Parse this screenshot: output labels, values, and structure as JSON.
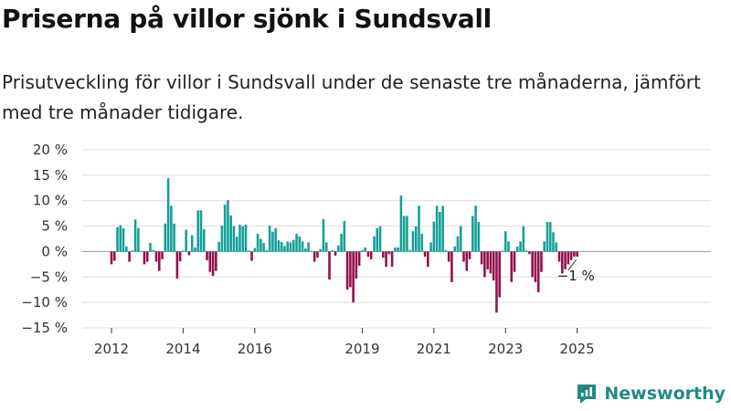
{
  "title": "Priserna på villor sjönk i Sundsvall",
  "subtitle": "Prisutveckling för villor i Sundsvall under de senaste tre månaderna, jämfört med tre månader tidigare.",
  "brand": {
    "name": "Newsworthy",
    "icon": "newsworthy-logo-icon",
    "color": "#1f8c82"
  },
  "colors": {
    "positive": "#13a098",
    "negative": "#930f4b",
    "grid": "#dddddd",
    "axis": "#333333"
  },
  "chart_data": {
    "type": "bar",
    "title": "",
    "xlabel": "",
    "ylabel": "",
    "unit": "%",
    "ylim": [
      -15,
      20
    ],
    "yticks": [
      20,
      15,
      10,
      5,
      0,
      -5,
      -10,
      -15
    ],
    "ytick_labels": [
      "20 %",
      "15 %",
      "10 %",
      "5 %",
      "0 %",
      "−5 %",
      "−10 %",
      "−15 %"
    ],
    "xticks": [
      {
        "label": "2012",
        "date": "2012-01"
      },
      {
        "label": "2014",
        "date": "2014-01"
      },
      {
        "label": "2016",
        "date": "2016-01"
      },
      {
        "label": "2019",
        "date": "2019-01"
      },
      {
        "label": "2021",
        "date": "2021-01"
      },
      {
        "label": "2023",
        "date": "2023-01"
      },
      {
        "label": "2025",
        "date": "2025-01"
      }
    ],
    "grid": true,
    "annotation": {
      "text": "−1 %",
      "date": "2025-01"
    },
    "series": [
      {
        "values": [
          {
            "date": "2012-01",
            "value": -2.5
          },
          {
            "date": "2012-02",
            "value": -1.8
          },
          {
            "date": "2012-03",
            "value": 4.8
          },
          {
            "date": "2012-04",
            "value": 5.2
          },
          {
            "date": "2012-05",
            "value": 4.6
          },
          {
            "date": "2012-06",
            "value": 1.0
          },
          {
            "date": "2012-07",
            "value": -2.0
          },
          {
            "date": "2012-08",
            "value": 0.2
          },
          {
            "date": "2012-09",
            "value": 6.3
          },
          {
            "date": "2012-10",
            "value": 4.6
          },
          {
            "date": "2012-11",
            "value": 0.1
          },
          {
            "date": "2012-12",
            "value": -2.5
          },
          {
            "date": "2013-01",
            "value": -2.0
          },
          {
            "date": "2013-02",
            "value": 1.7
          },
          {
            "date": "2013-03",
            "value": 0.3
          },
          {
            "date": "2013-04",
            "value": -2.0
          },
          {
            "date": "2013-05",
            "value": -3.8
          },
          {
            "date": "2013-06",
            "value": -1.5
          },
          {
            "date": "2013-07",
            "value": 5.5
          },
          {
            "date": "2013-08",
            "value": 14.4
          },
          {
            "date": "2013-09",
            "value": 9.0
          },
          {
            "date": "2013-10",
            "value": 5.5
          },
          {
            "date": "2013-11",
            "value": -5.3
          },
          {
            "date": "2013-12",
            "value": -1.9
          },
          {
            "date": "2014-01",
            "value": 0.2
          },
          {
            "date": "2014-02",
            "value": 4.3
          },
          {
            "date": "2014-03",
            "value": -0.7
          },
          {
            "date": "2014-04",
            "value": 3.2
          },
          {
            "date": "2014-05",
            "value": 0.8
          },
          {
            "date": "2014-06",
            "value": 8.1
          },
          {
            "date": "2014-07",
            "value": 8.1
          },
          {
            "date": "2014-08",
            "value": 4.4
          },
          {
            "date": "2014-09",
            "value": -1.7
          },
          {
            "date": "2014-10",
            "value": -4.0
          },
          {
            "date": "2014-11",
            "value": -4.8
          },
          {
            "date": "2014-12",
            "value": -3.8
          },
          {
            "date": "2015-01",
            "value": 1.9
          },
          {
            "date": "2015-02",
            "value": 5.1
          },
          {
            "date": "2015-03",
            "value": 9.2
          },
          {
            "date": "2015-04",
            "value": 10.1
          },
          {
            "date": "2015-05",
            "value": 7.1
          },
          {
            "date": "2015-06",
            "value": 5.0
          },
          {
            "date": "2015-07",
            "value": 2.9
          },
          {
            "date": "2015-08",
            "value": 5.3
          },
          {
            "date": "2015-09",
            "value": 5.0
          },
          {
            "date": "2015-10",
            "value": 5.3
          },
          {
            "date": "2015-11",
            "value": 0.2
          },
          {
            "date": "2015-12",
            "value": -1.8
          },
          {
            "date": "2016-01",
            "value": 0.7
          },
          {
            "date": "2016-02",
            "value": 3.5
          },
          {
            "date": "2016-03",
            "value": 2.5
          },
          {
            "date": "2016-04",
            "value": 1.7
          },
          {
            "date": "2016-05",
            "value": 0.3
          },
          {
            "date": "2016-06",
            "value": 5.1
          },
          {
            "date": "2016-07",
            "value": 3.9
          },
          {
            "date": "2016-08",
            "value": 4.6
          },
          {
            "date": "2016-09",
            "value": 2.2
          },
          {
            "date": "2016-10",
            "value": 1.9
          },
          {
            "date": "2016-11",
            "value": 1.1
          },
          {
            "date": "2016-12",
            "value": 2.0
          },
          {
            "date": "2017-01",
            "value": 1.8
          },
          {
            "date": "2017-02",
            "value": 2.3
          },
          {
            "date": "2017-03",
            "value": 3.5
          },
          {
            "date": "2017-04",
            "value": 3.0
          },
          {
            "date": "2017-05",
            "value": 2.0
          },
          {
            "date": "2017-06",
            "value": 0.6
          },
          {
            "date": "2017-07",
            "value": 1.8
          },
          {
            "date": "2017-08",
            "value": 0.0
          },
          {
            "date": "2017-09",
            "value": -2.0
          },
          {
            "date": "2017-10",
            "value": -1.2
          },
          {
            "date": "2017-11",
            "value": 0.5
          },
          {
            "date": "2017-12",
            "value": 6.4
          },
          {
            "date": "2018-01",
            "value": 1.8
          },
          {
            "date": "2018-02",
            "value": -5.5
          },
          {
            "date": "2018-03",
            "value": 0.2
          },
          {
            "date": "2018-04",
            "value": -0.8
          },
          {
            "date": "2018-05",
            "value": 1.2
          },
          {
            "date": "2018-06",
            "value": 3.5
          },
          {
            "date": "2018-07",
            "value": 6.0
          },
          {
            "date": "2018-08",
            "value": -7.5
          },
          {
            "date": "2018-09",
            "value": -7.0
          },
          {
            "date": "2018-10",
            "value": -10.0
          },
          {
            "date": "2018-11",
            "value": -5.3
          },
          {
            "date": "2018-12",
            "value": -2.8
          },
          {
            "date": "2019-01",
            "value": 0.3
          },
          {
            "date": "2019-02",
            "value": 0.8
          },
          {
            "date": "2019-03",
            "value": -1.0
          },
          {
            "date": "2019-04",
            "value": -1.5
          },
          {
            "date": "2019-05",
            "value": 3.0
          },
          {
            "date": "2019-06",
            "value": 4.6
          },
          {
            "date": "2019-07",
            "value": 5.0
          },
          {
            "date": "2019-08",
            "value": -1.2
          },
          {
            "date": "2019-09",
            "value": -3.0
          },
          {
            "date": "2019-10",
            "value": -0.5
          },
          {
            "date": "2019-11",
            "value": -3.0
          },
          {
            "date": "2019-12",
            "value": 0.8
          },
          {
            "date": "2020-01",
            "value": 0.8
          },
          {
            "date": "2020-02",
            "value": 11.0
          },
          {
            "date": "2020-03",
            "value": 7.0
          },
          {
            "date": "2020-04",
            "value": 7.0
          },
          {
            "date": "2020-05",
            "value": 0.3
          },
          {
            "date": "2020-06",
            "value": 4.0
          },
          {
            "date": "2020-07",
            "value": 5.0
          },
          {
            "date": "2020-08",
            "value": 9.0
          },
          {
            "date": "2020-09",
            "value": 3.5
          },
          {
            "date": "2020-10",
            "value": -1.0
          },
          {
            "date": "2020-11",
            "value": -3.0
          },
          {
            "date": "2020-12",
            "value": 1.8
          },
          {
            "date": "2021-01",
            "value": 5.9
          },
          {
            "date": "2021-02",
            "value": 9.0
          },
          {
            "date": "2021-03",
            "value": 7.8
          },
          {
            "date": "2021-04",
            "value": 9.0
          },
          {
            "date": "2021-05",
            "value": 0.3
          },
          {
            "date": "2021-06",
            "value": -2.0
          },
          {
            "date": "2021-07",
            "value": -6.0
          },
          {
            "date": "2021-08",
            "value": 1.0
          },
          {
            "date": "2021-09",
            "value": 3.0
          },
          {
            "date": "2021-10",
            "value": 5.0
          },
          {
            "date": "2021-11",
            "value": -2.0
          },
          {
            "date": "2021-12",
            "value": -3.8
          },
          {
            "date": "2022-01",
            "value": -1.5
          },
          {
            "date": "2022-02",
            "value": 7.0
          },
          {
            "date": "2022-03",
            "value": 9.0
          },
          {
            "date": "2022-04",
            "value": 5.8
          },
          {
            "date": "2022-05",
            "value": -2.5
          },
          {
            "date": "2022-06",
            "value": -5.0
          },
          {
            "date": "2022-07",
            "value": -3.5
          },
          {
            "date": "2022-08",
            "value": -4.3
          },
          {
            "date": "2022-09",
            "value": -5.7
          },
          {
            "date": "2022-10",
            "value": -12.0
          },
          {
            "date": "2022-11",
            "value": -9.0
          },
          {
            "date": "2022-12",
            "value": 0.2
          },
          {
            "date": "2023-01",
            "value": 4.0
          },
          {
            "date": "2023-02",
            "value": 2.0
          },
          {
            "date": "2023-03",
            "value": -6.0
          },
          {
            "date": "2023-04",
            "value": -4.0
          },
          {
            "date": "2023-05",
            "value": 1.0
          },
          {
            "date": "2023-06",
            "value": 2.0
          },
          {
            "date": "2023-07",
            "value": 5.0
          },
          {
            "date": "2023-08",
            "value": 0.2
          },
          {
            "date": "2023-09",
            "value": -0.5
          },
          {
            "date": "2023-10",
            "value": -5.0
          },
          {
            "date": "2023-11",
            "value": -6.0
          },
          {
            "date": "2023-12",
            "value": -8.0
          },
          {
            "date": "2024-01",
            "value": -4.0
          },
          {
            "date": "2024-02",
            "value": 2.0
          },
          {
            "date": "2024-03",
            "value": 5.8
          },
          {
            "date": "2024-04",
            "value": 5.8
          },
          {
            "date": "2024-05",
            "value": 3.8
          },
          {
            "date": "2024-06",
            "value": 1.8
          },
          {
            "date": "2024-07",
            "value": -2.0
          },
          {
            "date": "2024-08",
            "value": -4.3
          },
          {
            "date": "2024-09",
            "value": -3.5
          },
          {
            "date": "2024-10",
            "value": -2.5
          },
          {
            "date": "2024-11",
            "value": -1.7
          },
          {
            "date": "2024-12",
            "value": -1.0
          },
          {
            "date": "2025-01",
            "value": -1.0
          }
        ]
      }
    ]
  }
}
